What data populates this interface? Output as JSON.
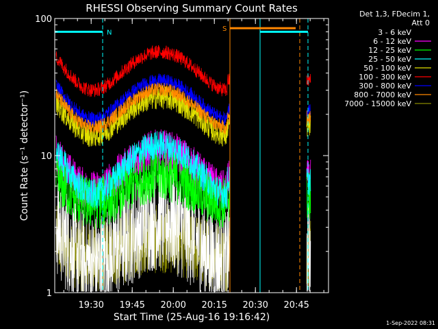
{
  "chart_data": {
    "type": "line",
    "title": "RHESSI Observing Summary Count Rates",
    "xlabel": "Start Time (25-Aug-16 19:16:42)",
    "ylabel": "Count Rate (s⁻¹ detector⁻¹)",
    "y_scale": "log",
    "ylim": [
      1,
      100
    ],
    "y_tick_labels": [
      "1",
      "10",
      "100"
    ],
    "x_tick_labels": [
      "19:30",
      "19:45",
      "20:00",
      "20:15",
      "20:30",
      "20:45"
    ],
    "x_tick_minutes": [
      13.3,
      28.3,
      43.3,
      58.3,
      73.3,
      88.3
    ],
    "xlim_minutes": [
      0,
      100
    ],
    "legend_header": [
      "Det 1,3, FDecim 1,",
      "Att 0"
    ],
    "legend_position": "right",
    "series": [
      {
        "name": "3 - 6 keV",
        "color": "#ffffff",
        "base": 1.6,
        "amp": 2.2,
        "noise": 0.9
      },
      {
        "name": "6 - 12 keV",
        "color": "#ff00ff",
        "base": 5.5,
        "amp": 2.0,
        "noise": 0.35
      },
      {
        "name": "12 - 25 keV",
        "color": "#00ff00",
        "base": 4.5,
        "amp": 1.6,
        "noise": 0.45
      },
      {
        "name": "25 - 50 keV",
        "color": "#00ffff",
        "base": 5.2,
        "amp": 2.3,
        "noise": 0.25
      },
      {
        "name": "50 - 100 keV",
        "color": "#e0e000",
        "base": 14.0,
        "amp": 1.9,
        "noise": 0.2
      },
      {
        "name": "100 - 300 keV",
        "color": "#ff0000",
        "base": 30.0,
        "amp": 1.9,
        "noise": 0.12
      },
      {
        "name": "300 - 800 keV",
        "color": "#0000ff",
        "base": 18.5,
        "amp": 1.9,
        "noise": 0.12
      },
      {
        "name": "800 - 7000 keV",
        "color": "#ff8800",
        "base": 16.0,
        "amp": 1.9,
        "noise": 0.12
      },
      {
        "name": "7000 - 15000 keV",
        "color": "#888800",
        "base": 1.8,
        "amp": 1.4,
        "noise": 0.6
      }
    ],
    "shape": {
      "min1_min": 14,
      "max_min": 44,
      "min2_min": 63,
      "data_end_min": 64,
      "resume_min": 92
    },
    "flags": [
      {
        "label": "N",
        "color": "#00ffff",
        "start_min": 0,
        "end_min": 17.5,
        "level": 80
      },
      {
        "label": "S",
        "color": "#ff8800",
        "start_min": 64,
        "end_min": 88,
        "level": 85
      },
      {
        "label": "",
        "color": "#00ffff",
        "start_min": 75,
        "end_min": 92.5,
        "level": 80
      }
    ],
    "vlines": [
      {
        "min": 17.5,
        "color": "#00ffff",
        "dashed": true
      },
      {
        "min": 64,
        "color": "#ff8800",
        "dashed": false
      },
      {
        "min": 75,
        "color": "#00ffff",
        "dashed": false
      },
      {
        "min": 89.5,
        "color": "#ff8800",
        "dashed": true
      },
      {
        "min": 92.5,
        "color": "#00ffff",
        "dashed": true
      }
    ]
  },
  "footer": {
    "date": "1-Sep-2022 08:31"
  }
}
